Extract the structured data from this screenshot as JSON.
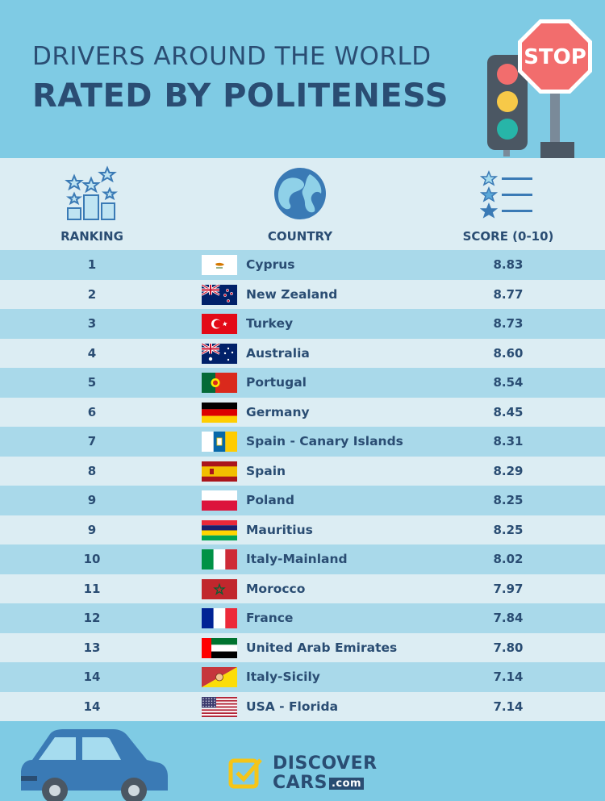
{
  "header": {
    "title_line1": "DRIVERS AROUND THE WORLD",
    "title_line2": "RATED BY POLITENESS",
    "stop_sign_text": "STOP"
  },
  "columns": {
    "ranking": "RANKING",
    "country": "COUNTRY",
    "score": "SCORE (0-10)"
  },
  "chart_data": {
    "type": "table",
    "columns": [
      "RANKING",
      "COUNTRY",
      "SCORE (0-10)"
    ],
    "rows": [
      {
        "rank": "1",
        "country": "Cyprus",
        "score": "8.83",
        "flag": "cyprus"
      },
      {
        "rank": "2",
        "country": "New Zealand",
        "score": "8.77",
        "flag": "new-zealand"
      },
      {
        "rank": "3",
        "country": "Turkey",
        "score": "8.73",
        "flag": "turkey"
      },
      {
        "rank": "4",
        "country": "Australia",
        "score": "8.60",
        "flag": "australia"
      },
      {
        "rank": "5",
        "country": "Portugal",
        "score": "8.54",
        "flag": "portugal"
      },
      {
        "rank": "6",
        "country": "Germany",
        "score": "8.45",
        "flag": "germany"
      },
      {
        "rank": "7",
        "country": "Spain - Canary Islands",
        "score": "8.31",
        "flag": "canary-islands"
      },
      {
        "rank": "8",
        "country": "Spain",
        "score": "8.29",
        "flag": "spain"
      },
      {
        "rank": "9",
        "country": "Poland",
        "score": "8.25",
        "flag": "poland"
      },
      {
        "rank": "9",
        "country": "Mauritius",
        "score": "8.25",
        "flag": "mauritius"
      },
      {
        "rank": "10",
        "country": "Italy-Mainland",
        "score": "8.02",
        "flag": "italy"
      },
      {
        "rank": "11",
        "country": "Morocco",
        "score": "7.97",
        "flag": "morocco"
      },
      {
        "rank": "12",
        "country": "France",
        "score": "7.84",
        "flag": "france"
      },
      {
        "rank": "13",
        "country": "United Arab Emirates",
        "score": "7.80",
        "flag": "uae"
      },
      {
        "rank": "14",
        "country": "Italy-Sicily",
        "score": "7.14",
        "flag": "sicily"
      },
      {
        "rank": "14",
        "country": "USA - Florida",
        "score": "7.14",
        "flag": "usa"
      }
    ]
  },
  "footer": {
    "logo_line1": "DISCOVER",
    "logo_line2": "CARS",
    "logo_suffix": ".com"
  },
  "colors": {
    "background": "#7fcbe4",
    "navy": "#2a4d73",
    "row_dark": "#a9d9ea",
    "row_light": "#dcedf3",
    "accent_yellow": "#f5c518"
  }
}
